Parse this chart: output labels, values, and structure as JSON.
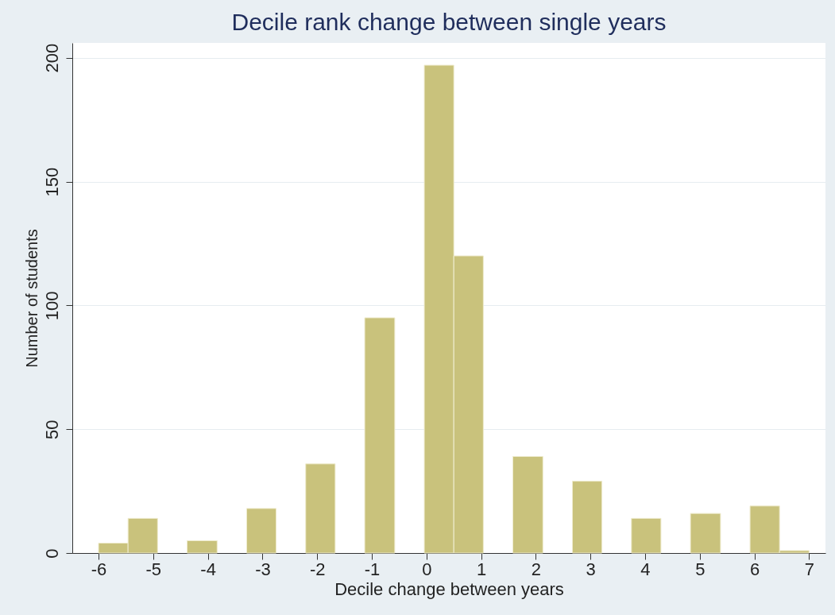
{
  "chart_data": {
    "type": "histogram",
    "title": "Decile rank change between single years",
    "xlabel": "Decile change between years",
    "ylabel": "Number of students",
    "bins": [
      -6,
      -5.46,
      -4.92,
      -4.38,
      -3.83,
      -3.29,
      -2.75,
      -2.21,
      -1.67,
      -1.13,
      -0.58,
      -0.04,
      0.5,
      1.04,
      1.58,
      2.13,
      2.67,
      3.21,
      3.75,
      4.29,
      4.83,
      5.38,
      5.92,
      6.46,
      7
    ],
    "values": [
      4,
      14,
      0,
      5,
      0,
      18,
      0,
      36,
      0,
      95,
      0,
      197,
      120,
      0,
      39,
      0,
      29,
      0,
      14,
      0,
      16,
      0,
      19,
      1
    ],
    "color": "#c9c27c",
    "xlim": [
      -6.48,
      7.3
    ],
    "xticks": [
      -6,
      -5,
      -4,
      -3,
      -2,
      -1,
      0,
      1,
      2,
      3,
      4,
      5,
      6,
      7
    ],
    "ylim": [
      0,
      206
    ],
    "yticks": [
      0,
      50,
      100,
      150,
      200
    ],
    "grid": "y"
  }
}
